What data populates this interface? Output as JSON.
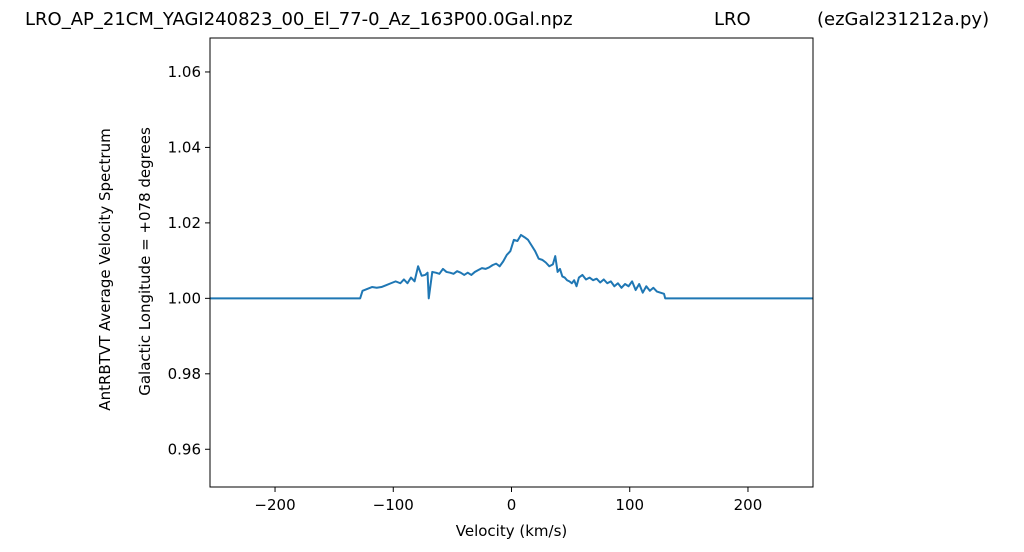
{
  "title": {
    "left": "LRO_AP_21CM_YAGI240823_00_El_77-0_Az_163P00.0Gal.npz",
    "center": "LRO",
    "right": "(ezGal231212a.py)"
  },
  "chart_data": {
    "type": "line",
    "xlabel": "Velocity (km/s)",
    "ylabel_outer": "AntRBTVT Average Velocity Spectrum",
    "ylabel_inner": "Galactic Longitude = +078 degrees",
    "xlim": [
      -255,
      255
    ],
    "ylim": [
      0.95,
      1.069
    ],
    "xticks": [
      {
        "value": -200,
        "label": "−200"
      },
      {
        "value": -100,
        "label": "−100"
      },
      {
        "value": 0,
        "label": "0"
      },
      {
        "value": 100,
        "label": "100"
      },
      {
        "value": 200,
        "label": "200"
      }
    ],
    "yticks": [
      {
        "value": 0.96,
        "label": "0.96"
      },
      {
        "value": 0.98,
        "label": "0.98"
      },
      {
        "value": 1.0,
        "label": "1.00"
      },
      {
        "value": 1.02,
        "label": "1.02"
      },
      {
        "value": 1.04,
        "label": "1.04"
      },
      {
        "value": 1.06,
        "label": "1.06"
      }
    ],
    "grid": false,
    "line_color": "#1f77b4",
    "series": [
      {
        "x": [
          -255,
          -128,
          -126,
          -122,
          -118,
          -114,
          -110,
          -106,
          -102,
          -98,
          -94,
          -91,
          -88,
          -85,
          -82,
          -79,
          -76,
          -73,
          -71,
          -70,
          -67,
          -64,
          -61,
          -58,
          -55,
          -52,
          -49,
          -46,
          -43,
          -40,
          -37,
          -34,
          -31,
          -28,
          -25,
          -22,
          -19,
          -16,
          -13,
          -10,
          -7,
          -4,
          -1,
          2,
          5,
          8,
          11,
          14,
          17,
          20,
          23,
          26,
          29,
          32,
          35,
          37,
          39,
          41,
          43,
          45,
          47,
          49,
          51,
          53,
          55,
          57,
          60,
          63,
          66,
          69,
          72,
          75,
          78,
          81,
          84,
          87,
          90,
          93,
          96,
          99,
          102,
          105,
          108,
          111,
          114,
          117,
          120,
          123,
          126,
          129,
          130,
          255
        ],
        "y": [
          1.0,
          1.0,
          1.002,
          1.0025,
          1.003,
          1.0028,
          1.003,
          1.0035,
          1.004,
          1.0045,
          1.004,
          1.005,
          1.004,
          1.0055,
          1.0045,
          1.0085,
          1.006,
          1.0062,
          1.0068,
          1.0,
          1.007,
          1.0068,
          1.0065,
          1.0078,
          1.007,
          1.0068,
          1.0065,
          1.0072,
          1.0068,
          1.0062,
          1.0068,
          1.0062,
          1.007,
          1.0075,
          1.008,
          1.0078,
          1.0082,
          1.0088,
          1.0092,
          1.0085,
          1.0098,
          1.0115,
          1.0125,
          1.0155,
          1.0152,
          1.0168,
          1.0162,
          1.0155,
          1.014,
          1.0125,
          1.0105,
          1.0102,
          1.0095,
          1.0085,
          1.009,
          1.0112,
          1.007,
          1.0078,
          1.0058,
          1.0055,
          1.0048,
          1.0045,
          1.004,
          1.0048,
          1.0032,
          1.0055,
          1.0062,
          1.005,
          1.0055,
          1.0048,
          1.0052,
          1.0042,
          1.005,
          1.004,
          1.0045,
          1.0032,
          1.004,
          1.0028,
          1.0038,
          1.0032,
          1.0045,
          1.0022,
          1.0038,
          1.0015,
          1.0032,
          1.002,
          1.0028,
          1.0018,
          1.0015,
          1.0012,
          1.0,
          1.0
        ]
      }
    ]
  }
}
